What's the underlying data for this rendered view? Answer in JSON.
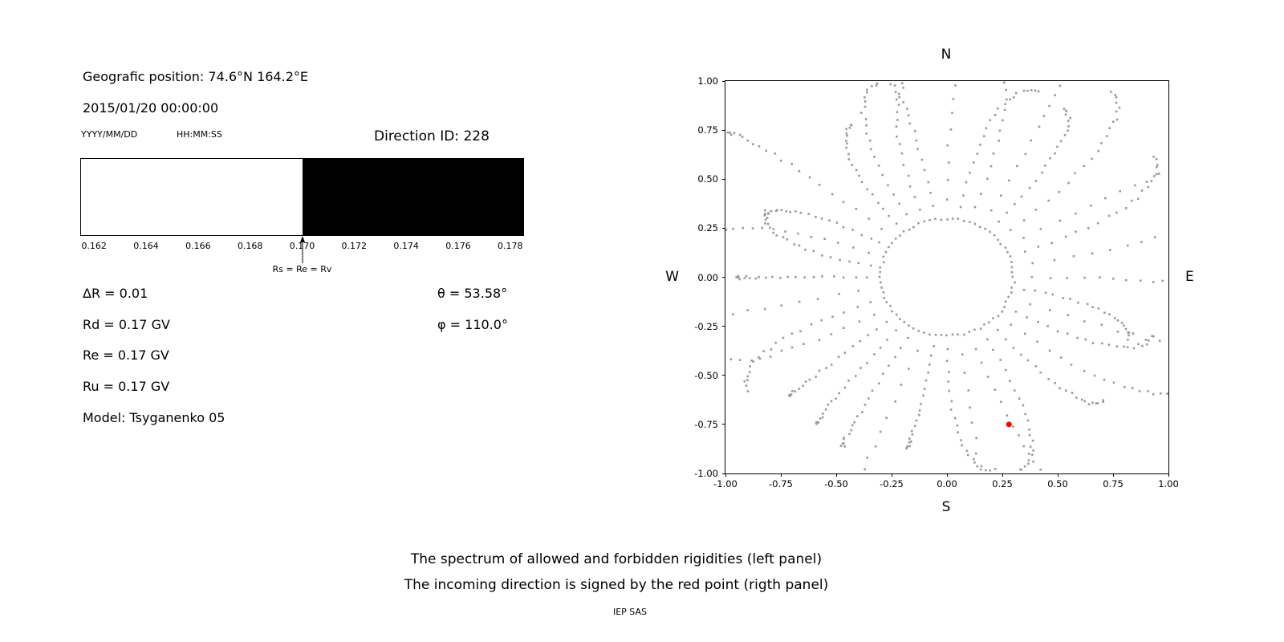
{
  "left_panel": {
    "geo": "Geografic position: 74.6°N 164.2°E",
    "datetime": "2015/01/20 00:00:00",
    "date_format": "YYYY/MM/DD",
    "time_format": "HH:MM:SS",
    "direction_id": "Direction ID: 228",
    "params": [
      "ΔR = 0.01",
      "Rd = 0.17 GV",
      "Re = 0.17 GV",
      "Ru = 0.17 GV",
      "Model: Tsyganenko 05"
    ],
    "theta": "θ = 53.58°",
    "phi": "φ = 110.0°"
  },
  "caption": {
    "line1": "The spectrum of allowed and forbidden rigidities (left panel)",
    "line2": "The incoming direction is signed by the red point (rigth panel)",
    "credit": "IEP SAS"
  },
  "chart_data": [
    {
      "type": "area",
      "name": "rigidity-spectrum",
      "description": "Spectrum of allowed (white) and forbidden (black) rigidities in GV",
      "xlim": [
        0.1615,
        0.1785
      ],
      "x_ticks": [
        "0.162",
        "0.164",
        "0.166",
        "0.168",
        "0.170",
        "0.172",
        "0.174",
        "0.176",
        "0.178"
      ],
      "forbidden_from": 0.17,
      "boundary_label": "Rs = Re = Rv",
      "allowed_color": "#ffffff",
      "forbidden_color": "#000000"
    },
    {
      "type": "scatter",
      "name": "incoming-direction-map",
      "description": "Asymptotic direction trajectories plotted as radial dotted spokes; red point marks the incoming direction",
      "xlim": [
        -1,
        1
      ],
      "ylim": [
        -1,
        1
      ],
      "x_ticks": [
        "-1.00",
        "-0.75",
        "-0.50",
        "-0.25",
        "0.00",
        "0.25",
        "0.50",
        "0.75",
        "1.00"
      ],
      "y_ticks": [
        "1.00",
        "0.75",
        "0.50",
        "0.25",
        "0.00",
        "-0.25",
        "-0.50",
        "-0.75",
        "-1.00"
      ],
      "compass": {
        "top": "N",
        "bottom": "S",
        "left": "W",
        "right": "E"
      },
      "dot_color": "#9a9a9a",
      "red_point": {
        "x": 0.28,
        "y": -0.75,
        "color": "#ff0000"
      },
      "pattern": {
        "spokes": 36,
        "points_per_spoke": 22,
        "inner_radius": 0.3,
        "outer_min": 0.85,
        "outer_max": 1.45,
        "ring_points": 36,
        "seed": 20150120
      }
    }
  ]
}
